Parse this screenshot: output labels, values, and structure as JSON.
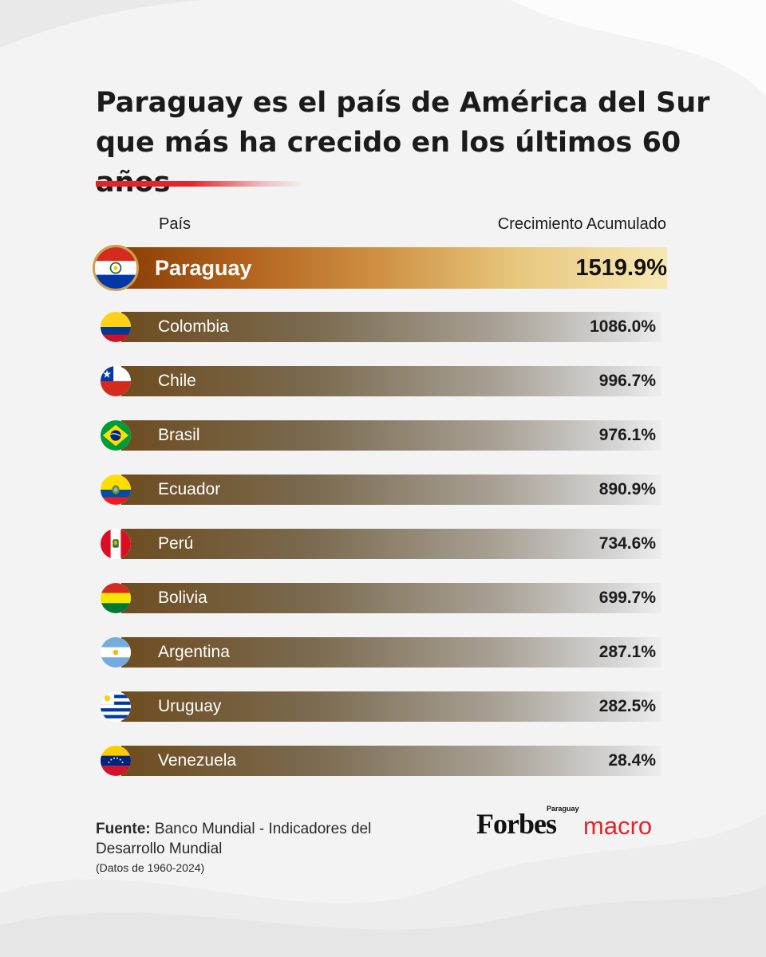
{
  "title": {
    "line1": "Paraguay es el país de América del Sur",
    "line2": "que más ha crecido en los últimos 60 años"
  },
  "headers": {
    "country": "País",
    "growth": "Crecimiento Acumulado"
  },
  "chart_data": {
    "type": "bar",
    "title": "Paraguay es el país de América del Sur que más ha crecido en los últimos 60 años",
    "xlabel": "País",
    "ylabel": "Crecimiento Acumulado",
    "unit": "%",
    "categories": [
      "Paraguay",
      "Colombia",
      "Chile",
      "Brasil",
      "Ecuador",
      "Perú",
      "Bolivia",
      "Argentina",
      "Uruguay",
      "Venezuela"
    ],
    "values": [
      1519.9,
      1086.0,
      996.7,
      976.1,
      890.9,
      734.6,
      699.7,
      287.1,
      282.5,
      28.4
    ],
    "value_labels": [
      "1519.9%",
      "1086.0%",
      "996.7%",
      "976.1%",
      "890.9%",
      "734.6%",
      "699.7%",
      "287.1%",
      "282.5%",
      "28.4%"
    ],
    "highlighted": "Paraguay"
  },
  "flags": [
    "paraguay-flag-icon",
    "colombia-flag-icon",
    "chile-flag-icon",
    "brazil-flag-icon",
    "ecuador-flag-icon",
    "peru-flag-icon",
    "bolivia-flag-icon",
    "argentina-flag-icon",
    "uruguay-flag-icon",
    "venezuela-flag-icon"
  ],
  "source": {
    "label": "Fuente:",
    "text": "Banco Mundial - Indicadores del Desarrollo Mundial",
    "note": "(Datos de 1960-2024)"
  },
  "logo": {
    "brand": "Forbes",
    "edition": "Paraguay",
    "section": "macro"
  },
  "colors": {
    "accent": "#e3242b",
    "highlight_bar_start": "#8a3e07",
    "highlight_bar_end": "#f7e9b4",
    "bar_start": "#6e4c20",
    "bar_end": "#eeeeee"
  }
}
